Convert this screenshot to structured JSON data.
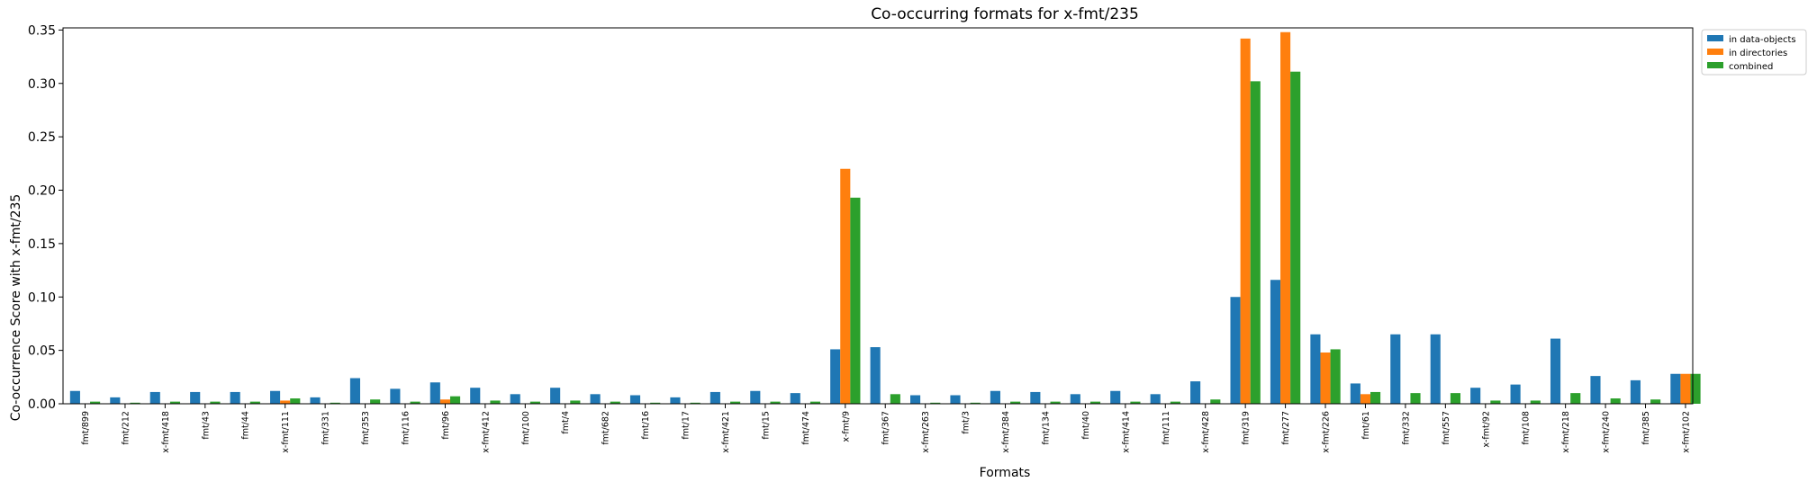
{
  "chart_data": {
    "type": "bar",
    "title": "Co-occurring formats for x-fmt/235",
    "xlabel": "Formats",
    "ylabel": "Co-occurrence Score with x-fmt/235",
    "ylim": [
      0,
      0.352
    ],
    "yticks": [
      "0.00",
      "0.05",
      "0.10",
      "0.15",
      "0.20",
      "0.25",
      "0.30",
      "0.35"
    ],
    "ytick_values": [
      0,
      0.05,
      0.1,
      0.15,
      0.2,
      0.25,
      0.3,
      0.35
    ],
    "grid": false,
    "legend_position": "outside-top-right",
    "categories": [
      "fmt/899",
      "fmt/212",
      "x-fmt/418",
      "fmt/43",
      "fmt/44",
      "x-fmt/111",
      "fmt/331",
      "fmt/353",
      "fmt/116",
      "fmt/96",
      "x-fmt/412",
      "fmt/100",
      "fmt/4",
      "fmt/682",
      "fmt/16",
      "fmt/17",
      "x-fmt/421",
      "fmt/15",
      "fmt/474",
      "x-fmt/9",
      "fmt/367",
      "x-fmt/263",
      "fmt/3",
      "x-fmt/384",
      "fmt/134",
      "fmt/40",
      "x-fmt/414",
      "fmt/111",
      "x-fmt/428",
      "fmt/319",
      "fmt/277",
      "x-fmt/226",
      "fmt/61",
      "fmt/332",
      "fmt/557",
      "x-fmt/92",
      "fmt/108",
      "x-fmt/218",
      "x-fmt/240",
      "fmt/385",
      "x-fmt/102"
    ],
    "series": [
      {
        "name": "in data-objects",
        "color": "#1f77b4",
        "values": [
          0.012,
          0.006,
          0.011,
          0.011,
          0.011,
          0.012,
          0.006,
          0.024,
          0.014,
          0.02,
          0.015,
          0.009,
          0.015,
          0.009,
          0.008,
          0.006,
          0.011,
          0.012,
          0.01,
          0.051,
          0.053,
          0.008,
          0.008,
          0.012,
          0.011,
          0.009,
          0.012,
          0.009,
          0.021,
          0.1,
          0.116,
          0.065,
          0.019,
          0.065,
          0.065,
          0.015,
          0.018,
          0.061,
          0.026,
          0.022,
          0.028
        ]
      },
      {
        "name": "in directories",
        "color": "#ff7f0e",
        "values": [
          0,
          0,
          0,
          0,
          0,
          0.003,
          0,
          0,
          0,
          0.004,
          0,
          0,
          0,
          0,
          0,
          0,
          0,
          0,
          0,
          0.22,
          0,
          0,
          0,
          0,
          0,
          0,
          0,
          0,
          0,
          0.342,
          0.348,
          0.048,
          0.009,
          0,
          0,
          0,
          0,
          0,
          0,
          0,
          0.028
        ]
      },
      {
        "name": "combined",
        "color": "#2ca02c",
        "values": [
          0.002,
          0.001,
          0.002,
          0.002,
          0.002,
          0.005,
          0.001,
          0.004,
          0.002,
          0.007,
          0.003,
          0.002,
          0.003,
          0.002,
          0.001,
          0.001,
          0.002,
          0.002,
          0.002,
          0.193,
          0.009,
          0.001,
          0.001,
          0.002,
          0.002,
          0.002,
          0.002,
          0.002,
          0.004,
          0.302,
          0.311,
          0.051,
          0.011,
          0.01,
          0.01,
          0.003,
          0.003,
          0.01,
          0.005,
          0.004,
          0.028
        ]
      }
    ]
  }
}
